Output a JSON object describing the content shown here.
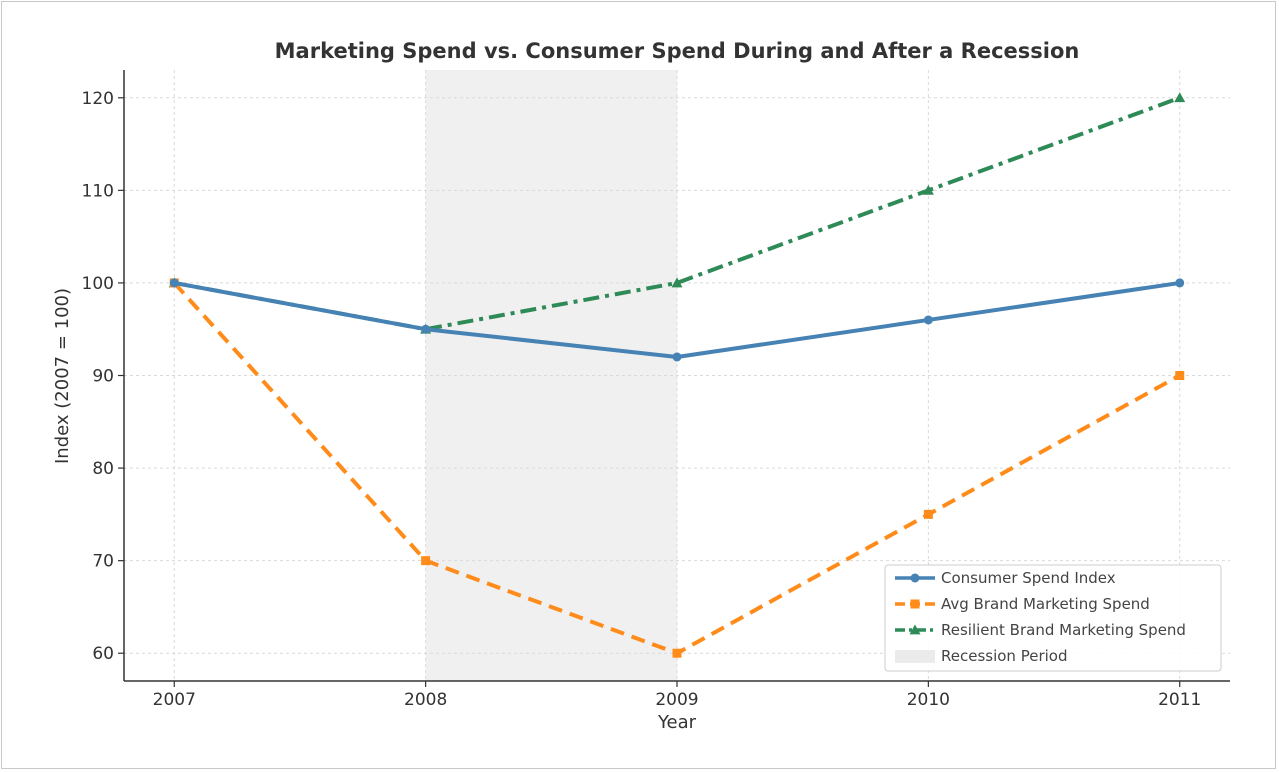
{
  "chart_data": {
    "type": "line",
    "title": "Marketing Spend vs. Consumer Spend During and After a Recession",
    "xlabel": "Year",
    "ylabel": "Index (2007 = 100)",
    "x": [
      2007,
      2008,
      2009,
      2010,
      2011
    ],
    "x_tick_labels": [
      "2007",
      "2008",
      "2009",
      "2010",
      "2011"
    ],
    "y_ticks": [
      60,
      70,
      80,
      90,
      100,
      110,
      120
    ],
    "y_tick_labels": [
      "60",
      "70",
      "80",
      "90",
      "100",
      "110",
      "120"
    ],
    "xlim": [
      2006.8,
      2011.2
    ],
    "ylim": [
      57,
      123
    ],
    "grid": true,
    "legend_position": "lower-right",
    "series": [
      {
        "name": "Consumer Spend Index",
        "values": [
          100,
          95,
          92,
          96,
          100
        ],
        "color": "#4682b4",
        "line_style": "solid",
        "marker": "circle"
      },
      {
        "name": "Avg Brand Marketing Spend",
        "values": [
          100,
          70,
          60,
          75,
          90
        ],
        "color": "#ff8c1a",
        "line_style": "dashed",
        "marker": "square"
      },
      {
        "name": "Resilient Brand Marketing Spend",
        "values": [
          100,
          95,
          100,
          110,
          120
        ],
        "color": "#2e8b57",
        "line_style": "dashdot",
        "marker": "triangle"
      }
    ],
    "shaded_regions": [
      {
        "name": "Recession Period",
        "x_start": 2008,
        "x_end": 2009,
        "color": "#d3d3d3"
      }
    ]
  }
}
